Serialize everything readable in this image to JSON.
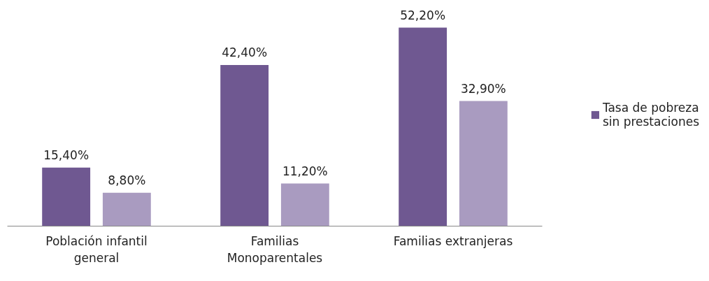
{
  "chart_data": {
    "type": "bar",
    "categories": [
      "Población infantil general",
      "Familias Monoparentales",
      "Familias extranjeras"
    ],
    "series": [
      {
        "name": "Tasa de pobreza sin prestaciones",
        "color": "#6f5891",
        "values": [
          15.4,
          42.4,
          52.2
        ],
        "value_labels": [
          "15,40%",
          "42,40%",
          "52,20%"
        ]
      },
      {
        "color": "#a99bc0",
        "values": [
          8.8,
          11.2,
          32.9
        ],
        "value_labels": [
          "8,80%",
          "11,20%",
          "32,90%"
        ]
      }
    ],
    "legend": "right",
    "grid": false
  }
}
